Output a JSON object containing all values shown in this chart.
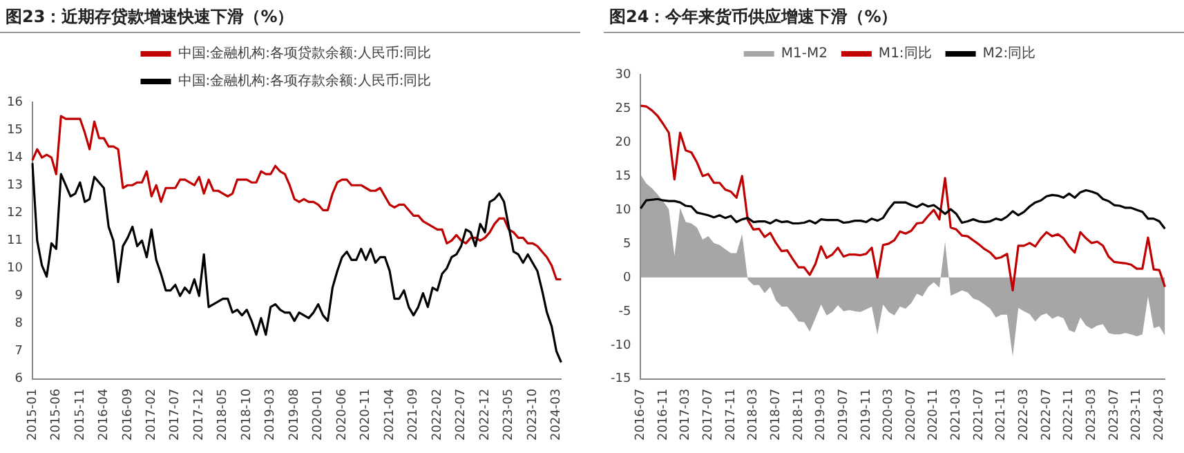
{
  "chart_data": [
    {
      "type": "line",
      "title": "图23：近期存贷款增速快速下滑（%）",
      "categories": [
        "2015-01",
        null,
        null,
        null,
        null,
        "2015-06",
        null,
        null,
        null,
        null,
        "2015-11",
        null,
        null,
        null,
        null,
        "2016-04",
        null,
        null,
        null,
        null,
        "2016-09",
        null,
        null,
        null,
        null,
        "2017-02",
        null,
        null,
        null,
        null,
        "2017-07",
        null,
        null,
        null,
        null,
        "2017-12",
        null,
        null,
        null,
        null,
        "2018-05",
        null,
        null,
        null,
        null,
        "2018-10",
        null,
        null,
        null,
        null,
        "2019-03",
        null,
        null,
        null,
        null,
        "2019-08",
        null,
        null,
        null,
        null,
        "2020-01",
        null,
        null,
        null,
        null,
        "2020-06",
        null,
        null,
        null,
        null,
        "2020-11",
        null,
        null,
        null,
        null,
        "2021-04",
        null,
        null,
        null,
        null,
        "2021-09",
        null,
        null,
        null,
        null,
        "2022-02",
        null,
        null,
        null,
        null,
        "2022-07",
        null,
        null,
        null,
        null,
        "2022-12",
        null,
        null,
        null,
        null,
        "2023-05",
        null,
        null,
        null,
        null,
        "2023-10",
        null,
        null,
        null,
        null,
        "2024-03",
        null
      ],
      "series": [
        {
          "name": "中国:金融机构:各项贷款余额:人民币:同比",
          "color": "#c00000",
          "values": [
            13.9,
            14.3,
            14.0,
            14.1,
            14.0,
            13.4,
            15.5,
            15.4,
            15.4,
            15.4,
            15.4,
            14.9,
            14.3,
            15.3,
            14.7,
            14.7,
            14.4,
            14.4,
            14.3,
            12.9,
            13.0,
            13.0,
            13.1,
            13.1,
            13.5,
            12.6,
            13.0,
            12.4,
            12.9,
            12.9,
            12.9,
            13.2,
            13.2,
            13.1,
            13.0,
            13.3,
            12.7,
            13.2,
            12.8,
            12.8,
            12.7,
            12.6,
            12.7,
            13.2,
            13.2,
            13.2,
            13.1,
            13.1,
            13.5,
            13.4,
            13.4,
            13.7,
            13.5,
            13.4,
            13.0,
            12.5,
            12.4,
            12.5,
            12.4,
            12.4,
            12.3,
            12.1,
            12.1,
            12.7,
            13.1,
            13.2,
            13.2,
            13.0,
            13.0,
            13.0,
            12.9,
            12.8,
            12.8,
            12.9,
            12.6,
            12.3,
            12.2,
            12.3,
            12.3,
            12.1,
            11.9,
            11.9,
            11.7,
            11.6,
            11.5,
            11.4,
            11.4,
            10.9,
            11.0,
            11.2,
            11.0,
            10.9,
            11.1,
            11.1,
            11.0,
            11.1,
            11.3,
            11.6,
            11.8,
            11.8,
            11.4,
            11.3,
            11.1,
            11.1,
            10.9,
            10.9,
            10.8,
            10.6,
            10.4,
            10.1,
            9.6,
            9.6
          ]
        },
        {
          "name": "中国:金融机构:各项存款余额:人民币:同比",
          "color": "#000000",
          "values": [
            13.8,
            11.0,
            10.1,
            9.7,
            10.9,
            10.7,
            13.4,
            13.0,
            12.6,
            12.7,
            13.1,
            12.4,
            12.5,
            13.3,
            13.1,
            12.9,
            11.5,
            11.0,
            9.5,
            10.8,
            11.1,
            11.5,
            10.8,
            11.0,
            10.4,
            11.4,
            10.3,
            9.8,
            9.2,
            9.2,
            9.4,
            9.0,
            9.3,
            9.1,
            9.6,
            9.0,
            10.5,
            8.6,
            8.7,
            8.8,
            8.9,
            8.9,
            8.4,
            8.5,
            8.3,
            8.5,
            8.1,
            7.6,
            8.2,
            7.6,
            8.6,
            8.7,
            8.5,
            8.4,
            8.4,
            8.1,
            8.4,
            8.3,
            8.2,
            8.4,
            8.7,
            8.3,
            8.1,
            9.3,
            9.9,
            10.4,
            10.6,
            10.3,
            10.3,
            10.7,
            10.3,
            10.7,
            10.2,
            10.4,
            10.4,
            9.9,
            8.9,
            8.9,
            9.2,
            8.6,
            8.3,
            8.6,
            9.1,
            8.6,
            9.3,
            9.2,
            9.8,
            10.0,
            10.4,
            10.5,
            10.8,
            11.4,
            11.3,
            10.8,
            11.6,
            11.3,
            12.4,
            12.5,
            12.7,
            12.4,
            11.5,
            10.6,
            10.5,
            10.2,
            10.5,
            10.2,
            9.9,
            9.2,
            8.4,
            7.9,
            7.0,
            6.6
          ]
        }
      ],
      "ylim": [
        6,
        16
      ],
      "yticks": [
        6,
        7,
        8,
        9,
        10,
        11,
        12,
        13,
        14,
        15,
        16
      ],
      "grid": false,
      "legend": "top",
      "marker": "none"
    },
    {
      "type": "line",
      "title": "图24：今年来货币供应增速下滑（%）",
      "categories": [
        "2016-07",
        null,
        null,
        null,
        "2016-11",
        null,
        null,
        null,
        "2017-03",
        null,
        null,
        null,
        "2017-07",
        null,
        null,
        null,
        "2017-11",
        null,
        null,
        null,
        "2018-03",
        null,
        null,
        null,
        "2018-07",
        null,
        null,
        null,
        "2018-11",
        null,
        null,
        null,
        "2019-03",
        null,
        null,
        null,
        "2019-07",
        null,
        null,
        null,
        "2019-11",
        null,
        null,
        null,
        "2020-03",
        null,
        null,
        null,
        "2020-07",
        null,
        null,
        null,
        "2020-11",
        null,
        null,
        null,
        "2021-03",
        null,
        null,
        null,
        "2021-07",
        null,
        null,
        null,
        "2021-11",
        null,
        null,
        null,
        "2022-03",
        null,
        null,
        null,
        "2022-07",
        null,
        null,
        null,
        "2022-11",
        null,
        null,
        null,
        "2023-03",
        null,
        null,
        null,
        "2023-07",
        null,
        null,
        null,
        "2023-11",
        null,
        null,
        null,
        "2024-03",
        null
      ],
      "series": [
        {
          "name": "M1-M2",
          "type": "area",
          "color": "#a6a6a6",
          "values": [
            15.2,
            13.9,
            13.2,
            12.3,
            11.3,
            10.1,
            3.2,
            10.3,
            8.2,
            8.0,
            7.4,
            5.6,
            6.1,
            5.1,
            4.8,
            4.2,
            3.6,
            3.6,
            6.4,
            -0.3,
            -1.1,
            -1.1,
            -2.3,
            -1.4,
            -3.4,
            -4.3,
            -4.3,
            -5.3,
            -6.5,
            -6.6,
            -8.0,
            -6.0,
            -4.0,
            -5.6,
            -5.1,
            -4.1,
            -5.0,
            -4.8,
            -5.0,
            -5.1,
            -4.7,
            -4.3,
            -8.4,
            -4.0,
            -5.1,
            -5.6,
            -4.3,
            -4.6,
            -3.8,
            -2.4,
            -2.8,
            -1.4,
            -0.7,
            -1.5,
            5.3,
            -2.7,
            -2.3,
            -1.9,
            -2.2,
            -3.1,
            -3.4,
            -4.0,
            -4.6,
            -5.9,
            -5.5,
            -5.5,
            -11.7,
            -4.5,
            -5.0,
            -5.4,
            -6.5,
            -5.6,
            -5.3,
            -6.1,
            -5.7,
            -6.0,
            -7.8,
            -8.1,
            -5.9,
            -7.1,
            -7.6,
            -7.1,
            -6.9,
            -8.2,
            -8.4,
            -8.4,
            -8.2,
            -8.4,
            -8.7,
            -8.4,
            -2.8,
            -7.5,
            -7.2,
            -8.6
          ]
        },
        {
          "name": "M1:同比",
          "color": "#c00000",
          "values": [
            25.4,
            25.3,
            24.7,
            23.9,
            22.7,
            21.4,
            14.5,
            21.4,
            18.8,
            18.5,
            17.0,
            15.0,
            15.3,
            14.0,
            14.0,
            13.0,
            12.7,
            11.8,
            15.0,
            8.5,
            7.1,
            7.2,
            6.0,
            6.6,
            5.1,
            3.9,
            4.0,
            2.7,
            1.5,
            1.5,
            0.4,
            2.0,
            4.6,
            2.9,
            3.4,
            4.4,
            3.1,
            3.4,
            3.4,
            3.3,
            3.5,
            4.4,
            0.0,
            4.8,
            5.0,
            5.5,
            6.8,
            6.5,
            6.9,
            8.0,
            8.1,
            9.1,
            10.0,
            8.6,
            14.7,
            7.4,
            7.1,
            6.2,
            6.1,
            5.5,
            4.9,
            4.2,
            3.7,
            2.8,
            3.0,
            3.5,
            -1.9,
            4.7,
            4.7,
            5.1,
            4.6,
            5.8,
            6.7,
            6.1,
            6.4,
            5.8,
            4.6,
            3.7,
            6.7,
            5.8,
            5.1,
            5.3,
            4.7,
            3.1,
            2.3,
            2.2,
            2.1,
            1.9,
            1.3,
            1.3,
            5.9,
            1.2,
            1.1,
            -1.4
          ]
        },
        {
          "name": "M2:同比",
          "color": "#000000",
          "values": [
            10.2,
            11.4,
            11.5,
            11.6,
            11.4,
            11.3,
            11.3,
            11.1,
            10.6,
            10.5,
            9.6,
            9.4,
            9.2,
            8.9,
            9.2,
            8.8,
            9.1,
            8.2,
            8.6,
            8.8,
            8.2,
            8.3,
            8.3,
            8.0,
            8.5,
            8.2,
            8.3,
            8.0,
            8.0,
            8.1,
            8.4,
            8.0,
            8.6,
            8.5,
            8.5,
            8.5,
            8.1,
            8.2,
            8.4,
            8.4,
            8.2,
            8.7,
            8.4,
            8.8,
            10.1,
            11.1,
            11.1,
            11.1,
            10.7,
            10.4,
            10.9,
            10.5,
            10.7,
            10.1,
            9.4,
            10.1,
            9.4,
            8.1,
            8.3,
            8.6,
            8.3,
            8.2,
            8.3,
            8.7,
            8.5,
            9.0,
            9.8,
            9.2,
            9.7,
            10.5,
            11.1,
            11.4,
            12.0,
            12.2,
            12.1,
            11.8,
            12.4,
            11.8,
            12.6,
            12.9,
            12.7,
            12.4,
            11.6,
            11.3,
            10.7,
            10.6,
            10.3,
            10.3,
            10.0,
            9.7,
            8.7,
            8.7,
            8.3,
            7.2
          ]
        }
      ],
      "ylim": [
        -15,
        30
      ],
      "yticks": [
        -15,
        -10,
        -5,
        0,
        5,
        10,
        15,
        20,
        25,
        30
      ],
      "grid": false,
      "legend": "top",
      "marker": "none"
    }
  ]
}
